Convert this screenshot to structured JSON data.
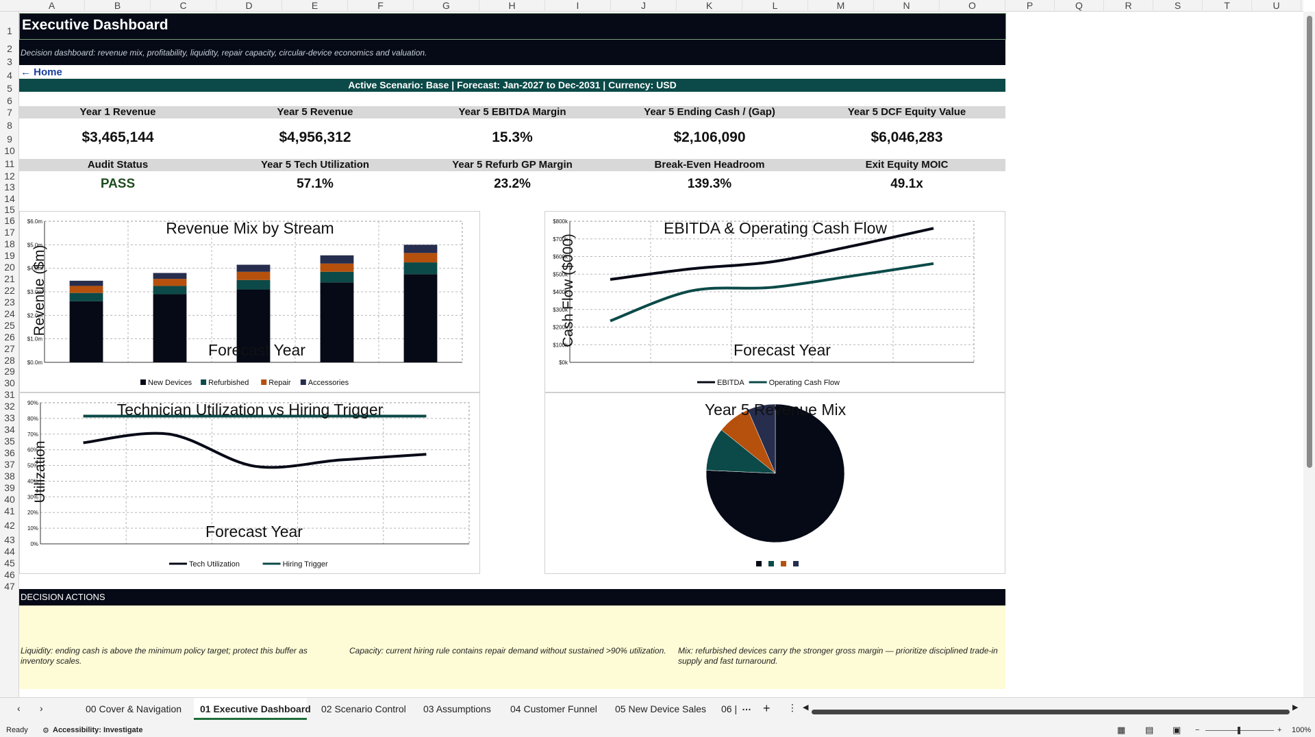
{
  "columns": [
    "A",
    "B",
    "C",
    "D",
    "E",
    "F",
    "G",
    "H",
    "I",
    "J",
    "K",
    "L",
    "M",
    "N",
    "O",
    "P",
    "Q",
    "R",
    "S",
    "T",
    "U"
  ],
  "rows": [
    "1",
    "2",
    "3",
    "4",
    "5",
    "6",
    "7",
    "8",
    "9",
    "10",
    "11",
    "12",
    "13",
    "14",
    "15",
    "16",
    "17",
    "18",
    "19",
    "20",
    "21",
    "22",
    "23",
    "24",
    "25",
    "26",
    "27",
    "28",
    "29",
    "30",
    "31",
    "32",
    "33",
    "34",
    "35",
    "36",
    "37",
    "38",
    "39",
    "40",
    "41",
    "42",
    "43",
    "44",
    "45",
    "46",
    "47"
  ],
  "header": {
    "title": "Executive Dashboard",
    "subtitle": "Decision dashboard: revenue mix, profitability, liquidity, repair capacity, circular-device economics and valuation.",
    "home_link": "← Home",
    "scenario_bar": "Active Scenario: Base  |  Forecast: Jan-2027 to Dec-2031  |  Currency: USD"
  },
  "kpis_row1": [
    {
      "label": "Year 1 Revenue",
      "value": "$3,465,144"
    },
    {
      "label": "Year 5 Revenue",
      "value": "$4,956,312"
    },
    {
      "label": "Year 5 EBITDA Margin",
      "value": "15.3%"
    },
    {
      "label": "Year 5 Ending Cash / (Gap)",
      "value": "$2,106,090"
    },
    {
      "label": "Year 5 DCF Equity Value",
      "value": "$6,046,283"
    }
  ],
  "kpis_row2": [
    {
      "label": "Audit Status",
      "value": "PASS"
    },
    {
      "label": "Year 5 Tech Utilization",
      "value": "57.1%"
    },
    {
      "label": "Year 5 Refurb GP Margin",
      "value": "23.2%"
    },
    {
      "label": "Break-Even Headroom",
      "value": "139.3%"
    },
    {
      "label": "Exit Equity MOIC",
      "value": "49.1x"
    }
  ],
  "colors": {
    "navy": "#050a16",
    "teal": "#0b4a48",
    "orange": "#b5500d",
    "slate": "#262d4d",
    "pass_green": "#1e4d1e",
    "decision_bg": "#fefcd6"
  },
  "chart_data": [
    {
      "type": "bar",
      "title": "Revenue Mix by Stream",
      "xlabel": "Forecast Year",
      "ylabel": "Revenue ($m)",
      "ylim": [
        0,
        6
      ],
      "yticks": [
        "$0.0m",
        "$1.0m",
        "$2.0m",
        "$3.0m",
        "$4.0m",
        "$5.0m",
        "$6.0m"
      ],
      "categories": [
        "",
        "",
        "",
        "",
        ""
      ],
      "stacked": true,
      "series": [
        {
          "name": "New Devices",
          "color": "#050a16",
          "values": [
            2.6,
            2.9,
            3.1,
            3.4,
            3.75
          ]
        },
        {
          "name": "Refurbished",
          "color": "#0b4a48",
          "values": [
            0.35,
            0.35,
            0.4,
            0.45,
            0.5
          ]
        },
        {
          "name": "Repair",
          "color": "#b5500d",
          "values": [
            0.3,
            0.3,
            0.35,
            0.35,
            0.4
          ]
        },
        {
          "name": "Accessories",
          "color": "#262d4d",
          "values": [
            0.22,
            0.25,
            0.3,
            0.35,
            0.35
          ]
        }
      ],
      "legend": "bottom"
    },
    {
      "type": "line",
      "title": "EBITDA & Operating Cash Flow",
      "xlabel": "Forecast Year",
      "ylabel": "Cash Flow ($000)",
      "ylim": [
        0,
        800
      ],
      "yticks": [
        "$0k",
        "$100k",
        "$200k",
        "$300k",
        "$400k",
        "$500k",
        "$600k",
        "$700k",
        "$800k"
      ],
      "x": [
        1,
        2,
        3,
        4,
        5
      ],
      "series": [
        {
          "name": "EBITDA",
          "color": "#050a16",
          "values": [
            470,
            530,
            570,
            660,
            760
          ]
        },
        {
          "name": "Operating Cash Flow",
          "color": "#0b4a48",
          "values": [
            235,
            405,
            425,
            490,
            560
          ]
        }
      ],
      "legend": "bottom"
    },
    {
      "type": "line",
      "title": "Technician Utilization vs Hiring Trigger",
      "xlabel": "Forecast Year",
      "ylabel": "Utilization",
      "ylim": [
        0,
        90
      ],
      "yticks": [
        "0%",
        "10%",
        "20%",
        "30%",
        "40%",
        "50%",
        "60%",
        "70%",
        "80%",
        "90%"
      ],
      "x": [
        1,
        2,
        3,
        4,
        5
      ],
      "series": [
        {
          "name": "Tech Utilization",
          "color": "#050a16",
          "values": [
            64.5,
            70,
            49.5,
            53.5,
            57.1
          ]
        },
        {
          "name": "Hiring Trigger",
          "color": "#0b4a48",
          "values": [
            81.5,
            81.5,
            81.5,
            81.5,
            81.5
          ]
        }
      ],
      "legend": "bottom"
    },
    {
      "type": "pie",
      "title": "Year 5 Revenue Mix",
      "labels": [
        "",
        "",
        "",
        ""
      ],
      "colors": [
        "#050a16",
        "#0b4a48",
        "#b5500d",
        "#262d4d"
      ],
      "values": [
        75.7,
        10.1,
        7.7,
        6.5
      ],
      "legend": "bottom"
    }
  ],
  "decision": {
    "title": "DECISION ACTIONS",
    "items": [
      "Liquidity: ending cash is above the minimum policy target; protect this buffer as inventory scales.",
      "Capacity: current hiring rule contains repair demand without sustained >90% utilization.",
      "Mix: refurbished devices carry the stronger gross margin — prioritize disciplined trade-in supply and fast turnaround."
    ]
  },
  "tabs": [
    "00 Cover & Navigation",
    "01 Executive Dashboard",
    "02 Scenario Control",
    "03 Assumptions",
    "04 Customer Funnel",
    "05 New Device Sales",
    "06 |"
  ],
  "active_tab": "01 Executive Dashboard",
  "status": {
    "ready": "Ready",
    "accessibility": "Accessibility: Investigate",
    "zoom": "100%"
  }
}
